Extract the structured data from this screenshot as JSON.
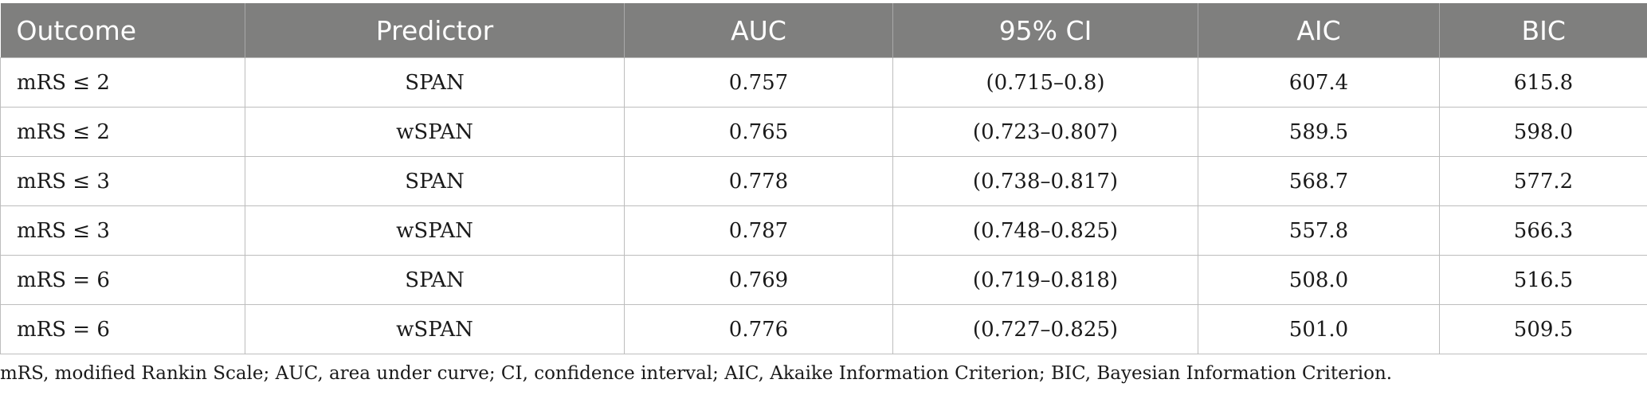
{
  "table": {
    "headers": [
      "Outcome",
      "Predictor",
      "AUC",
      "95% CI",
      "AIC",
      "BIC"
    ],
    "rows": [
      [
        "mRS ≤ 2",
        "SPAN",
        "0.757",
        "(0.715–0.8)",
        "607.4",
        "615.8"
      ],
      [
        "mRS ≤ 2",
        "wSPAN",
        "0.765",
        "(0.723–0.807)",
        "589.5",
        "598.0"
      ],
      [
        "mRS ≤ 3",
        "SPAN",
        "0.778",
        "(0.738–0.817)",
        "568.7",
        "577.2"
      ],
      [
        "mRS ≤ 3",
        "wSPAN",
        "0.787",
        "(0.748–0.825)",
        "557.8",
        "566.3"
      ],
      [
        "mRS = 6",
        "SPAN",
        "0.769",
        "(0.719–0.818)",
        "508.0",
        "516.5"
      ],
      [
        "mRS = 6",
        "wSPAN",
        "0.776",
        "(0.727–0.825)",
        "501.0",
        "509.5"
      ]
    ]
  },
  "footnote": "mRS, modified Rankin Scale; AUC, area under curve; CI, confidence interval; AIC, Akaike Information Criterion; BIC, Bayesian Information Criterion.",
  "colors": {
    "header_bg": "#7f7f7e",
    "header_text": "#ffffff",
    "grid": "#bdbdbd"
  }
}
